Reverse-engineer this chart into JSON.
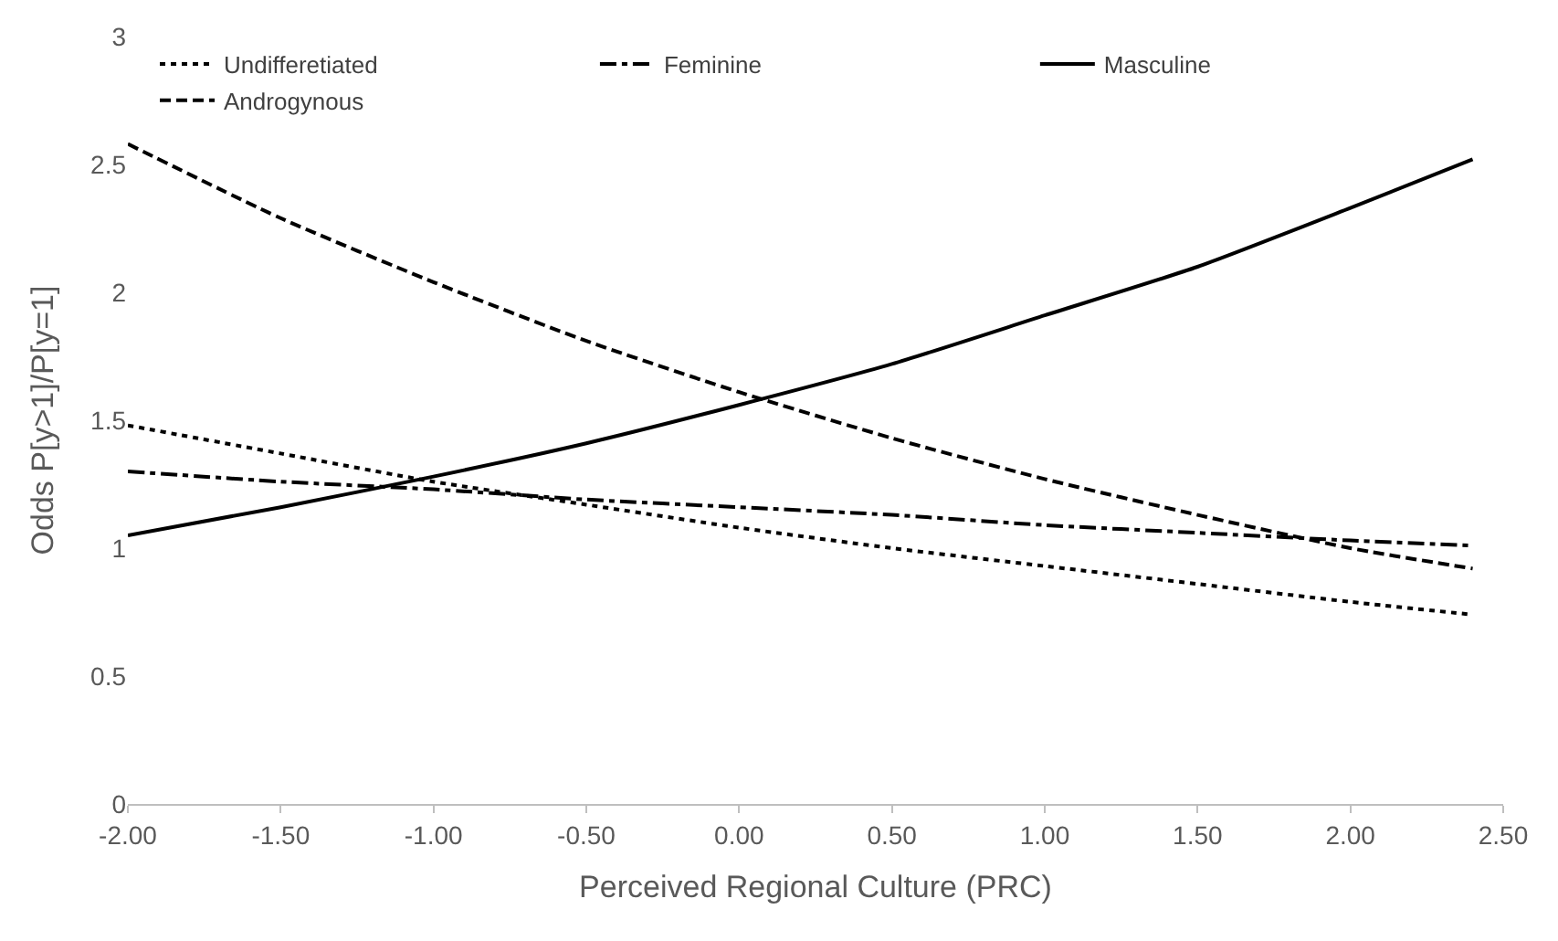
{
  "chart_data": {
    "type": "line",
    "xlabel": "Perceived Regional Culture (PRC)",
    "ylabel": "Odds P[y>1]/P[y=1]",
    "x": [
      -2,
      -1.5,
      -1,
      -0.5,
      0,
      0.5,
      1,
      1.5,
      2,
      2.4
    ],
    "series": [
      {
        "name": "Undifferetiated",
        "color": "#000000",
        "line_style": "dotted",
        "values": [
          1.48,
          1.37,
          1.26,
          1.17,
          1.08,
          1.0,
          0.93,
          0.86,
          0.79,
          0.74
        ]
      },
      {
        "name": "Feminine",
        "color": "#000000",
        "line_style": "dashdot",
        "values": [
          1.3,
          1.26,
          1.23,
          1.19,
          1.16,
          1.13,
          1.09,
          1.06,
          1.03,
          1.01
        ]
      },
      {
        "name": "Masculine",
        "color": "#000000",
        "line_style": "solid",
        "values": [
          1.05,
          1.16,
          1.28,
          1.41,
          1.56,
          1.72,
          1.91,
          2.1,
          2.33,
          2.52
        ]
      },
      {
        "name": "Androgynous",
        "color": "#000000",
        "line_style": "dashed",
        "values": [
          2.58,
          2.29,
          2.04,
          1.81,
          1.61,
          1.43,
          1.27,
          1.13,
          1.0,
          0.92
        ]
      }
    ],
    "xlim": [
      -2,
      2.5
    ],
    "xticks": [
      {
        "value": -2,
        "label": "-2.00"
      },
      {
        "value": -1.5,
        "label": "-1.50"
      },
      {
        "value": -1,
        "label": "-1.00"
      },
      {
        "value": -0.5,
        "label": "-0.50"
      },
      {
        "value": 0,
        "label": "0.00"
      },
      {
        "value": 0.5,
        "label": "0.50"
      },
      {
        "value": 1,
        "label": "1.00"
      },
      {
        "value": 1.5,
        "label": "1.50"
      },
      {
        "value": 2,
        "label": "2.00"
      },
      {
        "value": 2.5,
        "label": "2.50"
      }
    ],
    "ylim": [
      0,
      3
    ],
    "yticks": [
      0,
      0.5,
      1,
      1.5,
      2,
      2.5,
      3
    ],
    "grid": false,
    "legend": "top",
    "marker": "none"
  }
}
